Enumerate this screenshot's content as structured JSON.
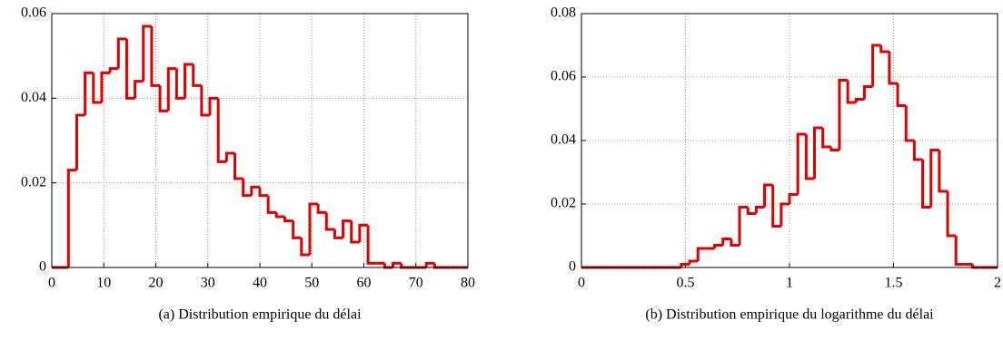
{
  "chart_data": [
    {
      "type": "histogram",
      "caption": "(a)  Distribution empirique du délai",
      "color": "#e00000",
      "grid": true,
      "bins": [
        0,
        1.6,
        3.2,
        4.8,
        6.4,
        8,
        9.6,
        11.2,
        12.8,
        14.4,
        16,
        17.6,
        19.2,
        20.8,
        22.4,
        24,
        25.6,
        27.2,
        28.8,
        30.4,
        32,
        33.6,
        35.2,
        36.8,
        38.4,
        40,
        41.6,
        43.2,
        44.8,
        46.4,
        48,
        49.6,
        51.2,
        52.8,
        54.4,
        56,
        57.6,
        59.2,
        60.8,
        62.4,
        64,
        65.6,
        67.2,
        68.8,
        70.4,
        72,
        73.6,
        75.2,
        76.8,
        78.4,
        80
      ],
      "counts": [
        0,
        0,
        0.023,
        0.036,
        0.046,
        0.039,
        0.046,
        0.047,
        0.054,
        0.04,
        0.044,
        0.057,
        0.043,
        0.037,
        0.047,
        0.04,
        0.048,
        0.043,
        0.036,
        0.04,
        0.025,
        0.027,
        0.021,
        0.017,
        0.019,
        0.017,
        0.013,
        0.012,
        0.011,
        0.007,
        0.003,
        0.015,
        0.013,
        0.009,
        0.007,
        0.011,
        0.006,
        0.01,
        0.001,
        0.001,
        0,
        0.001,
        0,
        0,
        0,
        0.001,
        0,
        0,
        0,
        0
      ],
      "xlim": [
        0,
        80
      ],
      "xticks": [
        0,
        10,
        20,
        30,
        40,
        50,
        60,
        70,
        80
      ],
      "ylim": [
        0,
        0.06
      ],
      "yticks": [
        0,
        0.02,
        0.04,
        0.06
      ]
    },
    {
      "type": "histogram",
      "caption": "(b)  Distribution empirique du logarithme du délai",
      "color": "#e00000",
      "grid": true,
      "bins": [
        0,
        0.04,
        0.08,
        0.12,
        0.16,
        0.2,
        0.24,
        0.28,
        0.32,
        0.36,
        0.4,
        0.44,
        0.48,
        0.52,
        0.56,
        0.6,
        0.64,
        0.68,
        0.72,
        0.76,
        0.8,
        0.84,
        0.88,
        0.92,
        0.96,
        1,
        1.04,
        1.08,
        1.12,
        1.16,
        1.2,
        1.24,
        1.28,
        1.32,
        1.36,
        1.4,
        1.44,
        1.48,
        1.52,
        1.56,
        1.6,
        1.64,
        1.68,
        1.72,
        1.76,
        1.8,
        1.84,
        1.88,
        1.92,
        1.96,
        2
      ],
      "counts": [
        0,
        0,
        0,
        0,
        0,
        0,
        0,
        0,
        0,
        0,
        0,
        0,
        0.001,
        0.002,
        0.006,
        0.006,
        0.007,
        0.009,
        0.007,
        0.019,
        0.017,
        0.019,
        0.026,
        0.013,
        0.02,
        0.023,
        0.042,
        0.028,
        0.044,
        0.038,
        0.037,
        0.059,
        0.052,
        0.053,
        0.057,
        0.07,
        0.068,
        0.058,
        0.051,
        0.04,
        0.034,
        0.019,
        0.037,
        0.024,
        0.01,
        0.001,
        0.001,
        0,
        0,
        0
      ],
      "xlim": [
        0,
        2
      ],
      "xticks": [
        0,
        0.5,
        1,
        1.5,
        2
      ],
      "ylim": [
        0,
        0.08
      ],
      "yticks": [
        0,
        0.02,
        0.04,
        0.06,
        0.08
      ]
    }
  ]
}
